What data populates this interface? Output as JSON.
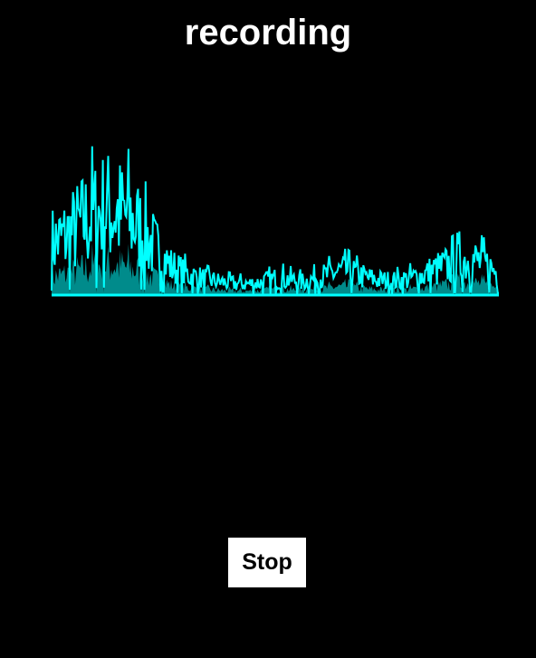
{
  "status": {
    "title": "recording"
  },
  "controls": {
    "stop_label": "Stop"
  },
  "waveform": {
    "icon": "audio-waveform",
    "line_color": "#00ffff",
    "fill_color": "#008b8b",
    "baseline_color": "#00ffff",
    "amplitude_envelope": [
      0.55,
      0.6,
      0.68,
      0.78,
      0.85,
      0.92,
      0.88,
      0.82,
      0.72,
      0.58,
      0.42,
      0.3,
      0.24,
      0.2,
      0.17,
      0.15,
      0.13,
      0.12,
      0.12,
      0.13,
      0.16,
      0.18,
      0.16,
      0.14,
      0.17,
      0.2,
      0.24,
      0.26,
      0.22,
      0.18,
      0.16,
      0.15,
      0.16,
      0.18,
      0.21,
      0.26,
      0.3,
      0.34,
      0.38,
      0.36,
      0.3,
      0.24
    ]
  }
}
